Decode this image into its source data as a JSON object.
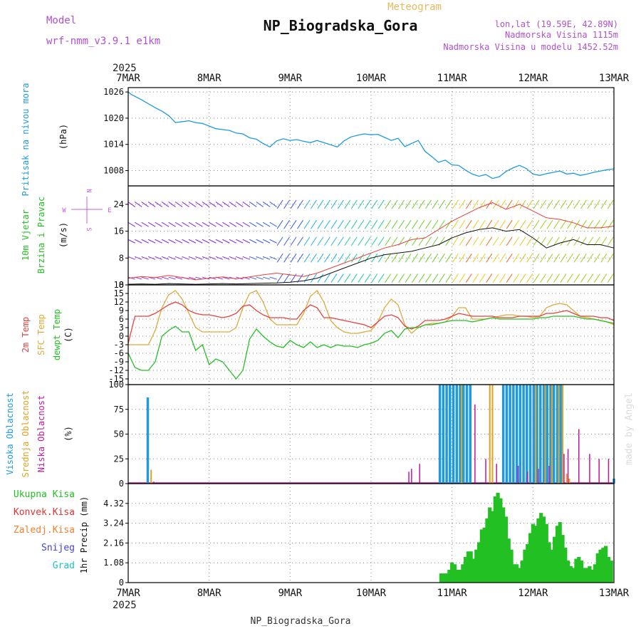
{
  "header": {
    "model_label": "Model",
    "model_name": "wrf-nmm_v3.9.1 e1km",
    "meteogram": "Meteogram",
    "station": "NP_Biogradska_Gora",
    "lonlat": "lon,lat (19.59E, 42.89N)",
    "altitude": "Nadmorska Visina 1115m",
    "model_altitude": "Nadmorska Visina u modelu 1452.52m",
    "footer": "NP_Biogradska_Gora",
    "credit": "made by Angel",
    "year": "2025"
  },
  "colors": {
    "pressure": "#1e9be0",
    "temp2m": "#e8403a",
    "sfc_temp": "#e0a83a",
    "dewpt": "#22c022",
    "high_cloud": "#1e9be0",
    "mid_cloud": "#e0a020",
    "low_cloud": "#c0189a",
    "precip": "#22c022",
    "conv": "#e83030",
    "frozen": "#f08030",
    "snow": "#4040e0",
    "grad": "#20c0c0",
    "model_text": "#b050d0"
  },
  "chart_data": [
    {
      "type": "line",
      "name": "pressure",
      "ylabel_left": "Pritisak na nivou mora",
      "unit": "(hPa)",
      "x_ticks": [
        "7MAR",
        "8MAR",
        "9MAR",
        "10MAR",
        "11MAR",
        "12MAR",
        "13MAR"
      ],
      "ylim": [
        1004.5,
        1027
      ],
      "yticks": [
        1008,
        1014,
        1020,
        1026
      ],
      "x": [
        0,
        0.25,
        0.5,
        1,
        1.5,
        2,
        2.5,
        3,
        3.5,
        4,
        4.5,
        5,
        5.5,
        6,
        6.5,
        7,
        7.5,
        8,
        8.5,
        9,
        9.5,
        10,
        10.5,
        11,
        11.5,
        12,
        12.5,
        13,
        13.5,
        14,
        14.5,
        15,
        15.5,
        16,
        16.5,
        17,
        17.5,
        18,
        18.5,
        19,
        19.5,
        20,
        20.5,
        21,
        21.5,
        22,
        22.5,
        23,
        23.5,
        24,
        24.5,
        25,
        25.5,
        26,
        26.5,
        27,
        27.5,
        28,
        28.5,
        29,
        29.5,
        30,
        30.5,
        31,
        31.5,
        32,
        32.5,
        33,
        33.5,
        34,
        34.5,
        35,
        35.5,
        36
      ],
      "values": [
        1026,
        1025.4,
        1025,
        1024.2,
        1023.3,
        1022.4,
        1021.6,
        1020.6,
        1019,
        1019.2,
        1019.4,
        1019,
        1018.8,
        1018.2,
        1017.6,
        1017.4,
        1017.2,
        1016.6,
        1016.4,
        1015.5,
        1015.2,
        1014.2,
        1013.4,
        1014.8,
        1015.3,
        1014.9,
        1015.1,
        1014.7,
        1014.4,
        1014.9,
        1014.4,
        1013.9,
        1013.4,
        1014.8,
        1015.7,
        1016.1,
        1016.4,
        1016.2,
        1016.3,
        1015.6,
        1014.9,
        1015.4,
        1013.5,
        1014.2,
        1014.9,
        1012.4,
        1011.2,
        1009.9,
        1010.4,
        1009.3,
        1009.2,
        1008.1,
        1007.2,
        1006.7,
        1007.1,
        1006.2,
        1006.6,
        1007.8,
        1008.6,
        1009.2,
        1008.5,
        1007.2,
        1006.9,
        1007.3,
        1007.6,
        1007.9,
        1007.2,
        1007.4,
        1006.9,
        1007.2,
        1007.6,
        1007.9,
        1008.2,
        1008.4
      ]
    },
    {
      "type": "line",
      "name": "wind",
      "ylabel_left_1": "10m Vjetar",
      "ylabel_left_2": "Brzina i Pravac",
      "unit": "(m/s)",
      "compass": {
        "n": "N",
        "s": "S",
        "e": "E",
        "w": "W"
      },
      "ylim": [
        0,
        29.5
      ],
      "yticks": [
        0,
        8,
        16,
        24
      ],
      "x": [
        0,
        1,
        2,
        3,
        4,
        5,
        6,
        7,
        8,
        9,
        10,
        11,
        12,
        13,
        14,
        15,
        16,
        17,
        18,
        19,
        20,
        21,
        22,
        23,
        24,
        25,
        26,
        27,
        28,
        29,
        30,
        31,
        32,
        33,
        34,
        35,
        36
      ],
      "series": [
        {
          "name": "gust",
          "values": [
            2,
            2.5,
            2.2,
            2.8,
            2.2,
            1.5,
            2,
            2.4,
            1.8,
            2.4,
            3,
            3.5,
            3,
            2.5,
            3.5,
            5,
            6.5,
            8,
            9.5,
            11,
            12,
            13.5,
            14,
            16.5,
            19,
            21,
            23,
            24.5,
            22.5,
            24,
            22,
            20,
            19.5,
            18.5,
            17,
            17,
            17.5
          ]
        },
        {
          "name": "speed",
          "values": [
            0.2,
            0.3,
            0.2,
            0.4,
            0.3,
            0.2,
            0.3,
            0.4,
            0.3,
            0.4,
            0.5,
            0.6,
            0.8,
            1.2,
            2,
            3.5,
            5,
            6.5,
            8,
            9,
            9.5,
            10,
            11,
            12,
            14,
            15.5,
            16.5,
            17,
            16,
            16.5,
            14,
            11,
            12.5,
            13.5,
            12,
            12,
            11
          ]
        }
      ]
    },
    {
      "type": "line",
      "name": "temperature",
      "ylabel_left_1": "2m Temp",
      "ylabel_left_2": "SFC Temp",
      "ylabel_left_3": "dewpt Temp",
      "unit": "(C)",
      "ylim": [
        -17,
        18
      ],
      "yticks": [
        -15,
        -12,
        -9,
        -6,
        -3,
        0,
        3,
        6,
        9,
        12,
        15,
        18
      ],
      "x": [
        0,
        0.5,
        1,
        1.5,
        2,
        2.5,
        3,
        3.5,
        4,
        4.5,
        5,
        5.5,
        6,
        6.5,
        7,
        7.5,
        8,
        8.5,
        9,
        9.5,
        10,
        10.5,
        11,
        11.5,
        12,
        12.5,
        13,
        13.5,
        14,
        14.5,
        15,
        15.5,
        16,
        16.5,
        17,
        17.5,
        18,
        18.5,
        19,
        19.5,
        20,
        20.5,
        21,
        21.5,
        22,
        22.5,
        23,
        23.5,
        24,
        24.5,
        25,
        25.5,
        26,
        26.5,
        27,
        27.5,
        28,
        28.5,
        29,
        29.5,
        30,
        30.5,
        31,
        31.5,
        32,
        32.5,
        33,
        33.5,
        34,
        34.5,
        35,
        35.5,
        36
      ],
      "series": [
        {
          "name": "temp_2m",
          "values": [
            -2.5,
            7,
            7,
            7,
            8,
            9.5,
            11,
            12,
            11,
            9,
            8,
            7.5,
            7.5,
            7,
            6.5,
            7,
            8,
            10.5,
            11,
            9,
            7.5,
            6.5,
            6.5,
            6.5,
            6,
            6,
            9,
            11,
            10,
            6.5,
            6.5,
            6,
            5.5,
            5,
            4.5,
            4,
            3,
            5,
            7,
            7.5,
            6.5,
            3.5,
            2.5,
            3.5,
            5.5,
            5.5,
            5.5,
            6,
            7,
            8,
            7.5,
            7,
            7,
            7,
            7,
            6.5,
            6.5,
            6.5,
            7,
            7,
            7,
            7,
            8,
            8,
            8.5,
            9,
            8,
            7,
            7,
            7,
            6.5,
            6.5,
            5.5
          ]
        },
        {
          "name": "sfc_temp",
          "values": [
            -3,
            -3,
            -3,
            -3,
            2,
            10,
            14.5,
            16,
            13,
            8,
            3,
            1.5,
            1.5,
            1.5,
            1.5,
            1.5,
            3,
            10,
            15,
            16,
            12,
            6,
            4,
            4,
            4,
            4,
            8,
            14,
            16,
            12,
            5.5,
            3,
            1.5,
            1,
            1,
            1.5,
            2,
            5,
            10,
            13,
            11,
            4,
            1,
            3,
            4,
            4.5,
            4.5,
            5,
            7,
            10,
            10,
            6,
            6,
            6,
            6.5,
            7,
            7.5,
            7.5,
            7,
            7,
            6.5,
            7,
            10,
            11,
            11.5,
            11,
            9,
            7,
            6.5,
            6,
            5.5,
            5,
            4
          ]
        },
        {
          "name": "dewpt",
          "values": [
            -6,
            -11,
            -12,
            -12,
            -9,
            0,
            2,
            3.5,
            1.5,
            1.5,
            -5,
            -3,
            -10,
            -8,
            -9,
            -12,
            -15,
            -12,
            -1,
            2.5,
            0,
            -2,
            -3.5,
            -4,
            -1.5,
            -3,
            -4,
            -2,
            -4,
            -3,
            -4,
            -3,
            -3.5,
            -3.5,
            -4,
            -3,
            -2.5,
            -1.5,
            1,
            2,
            -0.5,
            2.5,
            3,
            3,
            4,
            4,
            4.5,
            5,
            5.5,
            5.5,
            5.5,
            5,
            5.5,
            6,
            6.5,
            6,
            6,
            6,
            6,
            6,
            6,
            6.5,
            6.5,
            7,
            7,
            7,
            7,
            6.5,
            6,
            6,
            5.5,
            5,
            4.5
          ]
        }
      ]
    },
    {
      "type": "bar",
      "name": "clouds",
      "ylabel_left_1": "Visoka Oblacnost",
      "ylabel_left_2": "Srednja Oblacnost",
      "ylabel_left_3": "Niska Oblacnost",
      "unit": "(%)",
      "ylim": [
        0,
        100
      ],
      "yticks": [
        0,
        25,
        50,
        75,
        100
      ],
      "high": [
        [
          1.45,
          87
        ],
        [
          23.1,
          100
        ],
        [
          23.35,
          100
        ],
        [
          23.6,
          100
        ],
        [
          23.85,
          100
        ],
        [
          24.1,
          100
        ],
        [
          24.35,
          100
        ],
        [
          24.6,
          100
        ],
        [
          24.85,
          100
        ],
        [
          25.1,
          100
        ],
        [
          25.35,
          100
        ],
        [
          27.8,
          100
        ],
        [
          28.05,
          100
        ],
        [
          28.3,
          100
        ],
        [
          28.55,
          100
        ],
        [
          28.8,
          100
        ],
        [
          29.05,
          100
        ],
        [
          29.3,
          100
        ],
        [
          29.55,
          100
        ],
        [
          29.8,
          100
        ],
        [
          30.05,
          100
        ],
        [
          30.3,
          100
        ],
        [
          30.55,
          100
        ],
        [
          30.8,
          100
        ],
        [
          31.05,
          100
        ],
        [
          31.3,
          100
        ],
        [
          31.55,
          100
        ],
        [
          31.8,
          100
        ],
        [
          32.05,
          100
        ],
        [
          36,
          5
        ]
      ],
      "mid": [
        [
          1.7,
          14
        ],
        [
          24.7,
          100
        ],
        [
          26.8,
          100
        ],
        [
          27.0,
          100
        ],
        [
          30.2,
          100
        ],
        [
          30.9,
          100
        ],
        [
          31.4,
          100
        ],
        [
          31.9,
          100
        ],
        [
          32.2,
          100
        ],
        [
          32.5,
          10
        ],
        [
          32.7,
          5
        ]
      ],
      "low": [
        [
          1.9,
          2
        ],
        [
          20.8,
          12
        ],
        [
          21.0,
          15
        ],
        [
          21.6,
          20
        ],
        [
          25.7,
          80
        ],
        [
          26.5,
          25
        ],
        [
          27.3,
          20
        ],
        [
          28.9,
          18
        ],
        [
          29.6,
          12
        ],
        [
          30.4,
          15
        ],
        [
          31.2,
          18
        ],
        [
          32.3,
          30
        ],
        [
          32.6,
          35
        ],
        [
          33.4,
          55
        ],
        [
          34.2,
          30
        ],
        [
          34.9,
          25
        ],
        [
          35.6,
          25
        ]
      ]
    },
    {
      "type": "bar",
      "name": "precipitation",
      "ylabel_left": "1hr Precip (mm)",
      "legend": [
        "Ukupna Kisa",
        "Konvek.Kisa",
        "Zaledj.Kisa",
        "Snijeg",
        "Grad"
      ],
      "ylim": [
        0,
        5.4
      ],
      "yticks": [
        0,
        1.08,
        2.16,
        3.24,
        4.32
      ],
      "x_ticks": [
        "7MAR",
        "8MAR",
        "9MAR",
        "10MAR",
        "11MAR",
        "12MAR",
        "13MAR"
      ],
      "values": [
        [
          23.2,
          0.5
        ],
        [
          23.4,
          0.5
        ],
        [
          23.6,
          0.5
        ],
        [
          23.8,
          0.7
        ],
        [
          24.0,
          1.1
        ],
        [
          24.2,
          1.0
        ],
        [
          24.4,
          0.7
        ],
        [
          24.6,
          0.7
        ],
        [
          24.8,
          1.0
        ],
        [
          25.0,
          1.4
        ],
        [
          25.2,
          1.7
        ],
        [
          25.4,
          1.7
        ],
        [
          25.6,
          1.3
        ],
        [
          25.8,
          1.8
        ],
        [
          26.0,
          2.2
        ],
        [
          26.2,
          2.9
        ],
        [
          26.4,
          3.0
        ],
        [
          26.6,
          3.5
        ],
        [
          26.8,
          4.1
        ],
        [
          27.0,
          3.9
        ],
        [
          27.2,
          4.7
        ],
        [
          27.4,
          4.9
        ],
        [
          27.6,
          4.6
        ],
        [
          27.8,
          4.1
        ],
        [
          28.0,
          3.6
        ],
        [
          28.2,
          2.4
        ],
        [
          28.4,
          1.8
        ],
        [
          28.6,
          1.0
        ],
        [
          28.8,
          1.0
        ],
        [
          29.0,
          0.8
        ],
        [
          29.2,
          1.2
        ],
        [
          29.4,
          1.8
        ],
        [
          29.6,
          2.1
        ],
        [
          29.8,
          2.7
        ],
        [
          30.0,
          3.2
        ],
        [
          30.2,
          3.1
        ],
        [
          30.4,
          3.5
        ],
        [
          30.6,
          3.8
        ],
        [
          30.8,
          3.6
        ],
        [
          31.0,
          3.2
        ],
        [
          31.2,
          2.2
        ],
        [
          31.4,
          1.8
        ],
        [
          31.6,
          2.5
        ],
        [
          31.8,
          3.1
        ],
        [
          32.0,
          3.3
        ],
        [
          32.2,
          2.6
        ],
        [
          32.4,
          1.9
        ],
        [
          32.6,
          1.2
        ],
        [
          32.8,
          0.9
        ],
        [
          33.0,
          0.8
        ],
        [
          33.2,
          1.3
        ],
        [
          33.4,
          1.4
        ],
        [
          33.6,
          1.2
        ],
        [
          33.8,
          0.8
        ],
        [
          34.0,
          0.8
        ],
        [
          34.2,
          0.9
        ],
        [
          34.4,
          0.7
        ],
        [
          34.6,
          1.0
        ],
        [
          34.8,
          1.6
        ],
        [
          35.0,
          1.8
        ],
        [
          35.2,
          1.9
        ],
        [
          35.4,
          2.0
        ],
        [
          35.6,
          1.4
        ],
        [
          35.8,
          1.2
        ]
      ]
    }
  ]
}
